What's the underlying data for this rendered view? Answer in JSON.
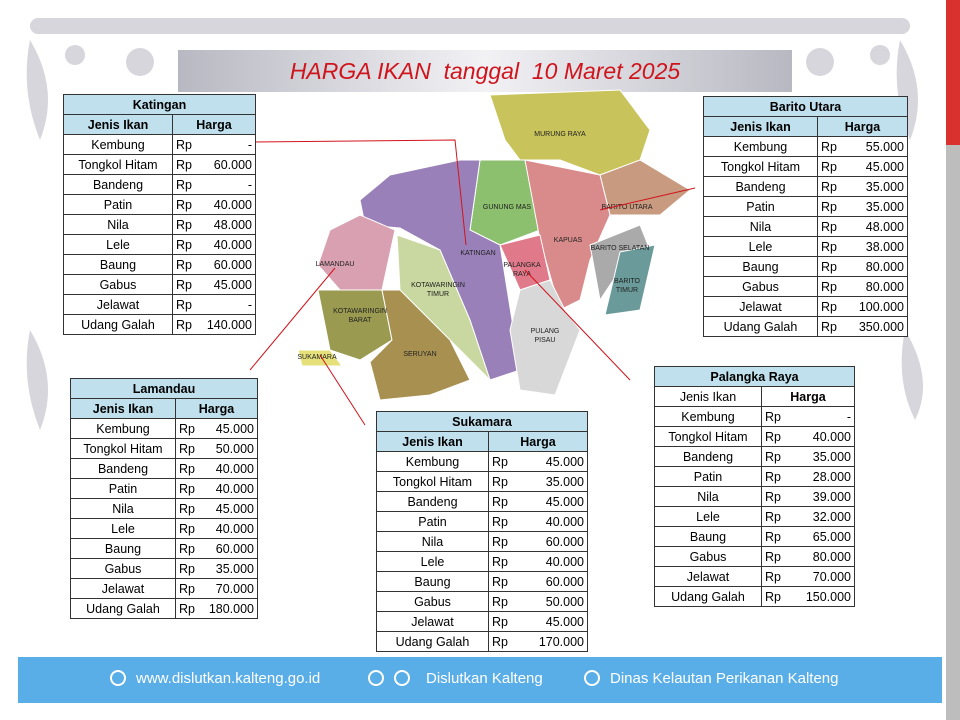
{
  "title": "HARGA IKAN  tanggal  10 Maret 2025",
  "map_labels": [
    [
      "MURUNG RAYA"
    ],
    [
      "GUNUNG MAS"
    ],
    [
      "BARITO UTARA"
    ],
    [
      "KATINGAN"
    ],
    [
      "KAPUAS"
    ],
    [
      "BARITO SELATAN"
    ],
    [
      "PALANGKA",
      "RAYA"
    ],
    [
      "BARITO",
      "TIMUR"
    ],
    [
      "LAMANDAU"
    ],
    [
      "KOTAWARINGIN",
      "TIMUR"
    ],
    [
      "KOTAWARINGIN",
      "BARAT"
    ],
    [
      "PULANG",
      "PISAU"
    ],
    [
      "SERUYAN"
    ],
    [
      "SUKAMARA"
    ]
  ],
  "tables": [
    {
      "region": "Katingan",
      "header": [
        "Jenis Ikan",
        "Harga"
      ],
      "rows": [
        [
          "Kembung",
          "Rp",
          "-"
        ],
        [
          "Tongkol Hitam",
          "Rp",
          "60.000"
        ],
        [
          "Bandeng",
          "Rp",
          "-"
        ],
        [
          "Patin",
          "Rp",
          "40.000"
        ],
        [
          "Nila",
          "Rp",
          "48.000"
        ],
        [
          "Lele",
          "Rp",
          "40.000"
        ],
        [
          "Baung",
          "Rp",
          "60.000"
        ],
        [
          "Gabus",
          "Rp",
          "45.000"
        ],
        [
          "Jelawat",
          "Rp",
          "-"
        ],
        [
          "Udang Galah",
          "Rp",
          "140.000"
        ]
      ]
    },
    {
      "region": "Barito Utara",
      "header": [
        "Jenis Ikan",
        "Harga"
      ],
      "rows": [
        [
          "Kembung",
          "Rp",
          "55.000"
        ],
        [
          "Tongkol Hitam",
          "Rp",
          "45.000"
        ],
        [
          "Bandeng",
          "Rp",
          "35.000"
        ],
        [
          "Patin",
          "Rp",
          "35.000"
        ],
        [
          "Nila",
          "Rp",
          "48.000"
        ],
        [
          "Lele",
          "Rp",
          "38.000"
        ],
        [
          "Baung",
          "Rp",
          "80.000"
        ],
        [
          "Gabus",
          "Rp",
          "80.000"
        ],
        [
          "Jelawat",
          "Rp",
          "100.000"
        ],
        [
          "Udang Galah",
          "Rp",
          "350.000"
        ]
      ]
    },
    {
      "region": "Lamandau",
      "header": [
        "Jenis Ikan",
        "Harga"
      ],
      "rows": [
        [
          "Kembung",
          "Rp",
          "45.000"
        ],
        [
          "Tongkol Hitam",
          "Rp",
          "50.000"
        ],
        [
          "Bandeng",
          "Rp",
          "40.000"
        ],
        [
          "Patin",
          "Rp",
          "40.000"
        ],
        [
          "Nila",
          "Rp",
          "45.000"
        ],
        [
          "Lele",
          "Rp",
          "40.000"
        ],
        [
          "Baung",
          "Rp",
          "60.000"
        ],
        [
          "Gabus",
          "Rp",
          "35.000"
        ],
        [
          "Jelawat",
          "Rp",
          "70.000"
        ],
        [
          "Udang Galah",
          "Rp",
          "180.000"
        ]
      ]
    },
    {
      "region": "Sukamara",
      "header": [
        "Jenis Ikan",
        "Harga"
      ],
      "rows": [
        [
          "Kembung",
          "Rp",
          "45.000"
        ],
        [
          "Tongkol Hitam",
          "Rp",
          "35.000"
        ],
        [
          "Bandeng",
          "Rp",
          "45.000"
        ],
        [
          "Patin",
          "Rp",
          "40.000"
        ],
        [
          "Nila",
          "Rp",
          "60.000"
        ],
        [
          "Lele",
          "Rp",
          "40.000"
        ],
        [
          "Baung",
          "Rp",
          "60.000"
        ],
        [
          "Gabus",
          "Rp",
          "50.000"
        ],
        [
          "Jelawat",
          "Rp",
          "45.000"
        ],
        [
          "Udang Galah",
          "Rp",
          "170.000"
        ]
      ]
    },
    {
      "region": "Palangka Raya",
      "header": [
        "Jenis Ikan",
        "Harga"
      ],
      "rows": [
        [
          "Kembung",
          "Rp",
          "-"
        ],
        [
          "Tongkol Hitam",
          "Rp",
          "40.000"
        ],
        [
          "Bandeng",
          "Rp",
          "35.000"
        ],
        [
          "Patin",
          "Rp",
          "28.000"
        ],
        [
          "Nila",
          "Rp",
          "39.000"
        ],
        [
          "Lele",
          "Rp",
          "32.000"
        ],
        [
          "Baung",
          "Rp",
          "65.000"
        ],
        [
          "Gabus",
          "Rp",
          "80.000"
        ],
        [
          "Jelawat",
          "Rp",
          "70.000"
        ],
        [
          "Udang Galah",
          "Rp",
          "150.000"
        ]
      ]
    }
  ],
  "footer": {
    "website": "www.dislutkan.kalteng.go.id",
    "social": "Dislutkan Kalteng",
    "facebook": "Dinas Kelautan Perikanan Kalteng"
  }
}
